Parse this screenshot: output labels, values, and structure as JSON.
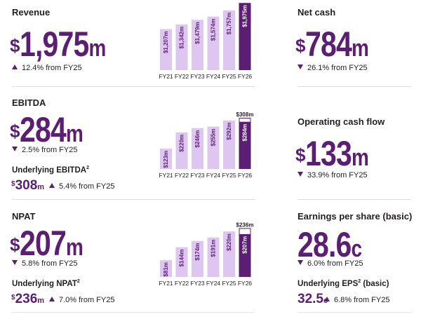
{
  "colors": {
    "accent": "#5c1e72",
    "light": "#ddc6f0",
    "text": "#231f20",
    "divider": "#e2e2e2"
  },
  "icons": {
    "up": "triangle-up-icon",
    "down": "triangle-down-icon"
  },
  "revenue": {
    "title": "Revenue",
    "currency": "$",
    "value": "1,975",
    "unit": "m",
    "change": "12.4% from FY25",
    "direction": "up"
  },
  "ebitda": {
    "title": "EBITDA",
    "currency": "$",
    "value": "284",
    "unit": "m",
    "change": "2.5% from FY25",
    "direction": "down",
    "underlying": {
      "title": "Underlying EBITDA",
      "sup": "2",
      "currency": "$",
      "value": "308",
      "unit": "m",
      "change": "5.4% from FY25",
      "direction": "up"
    }
  },
  "npat": {
    "title": "NPAT",
    "currency": "$",
    "value": "207",
    "unit": "m",
    "change": "5.8% from FY25",
    "direction": "down",
    "underlying": {
      "title": "Underlying NPAT",
      "sup": "2",
      "currency": "$",
      "value": "236",
      "unit": "m",
      "change": "7.0% from FY25",
      "direction": "up"
    }
  },
  "net_cash": {
    "title": "Net cash",
    "currency": "$",
    "value": "784",
    "unit": "m",
    "change": "26.1% from FY25",
    "direction": "down"
  },
  "ocf": {
    "title": "Operating cash flow",
    "currency": "$",
    "value": "133",
    "unit": "m",
    "change": "33.9% from FY25",
    "direction": "down"
  },
  "eps": {
    "title": "Earnings per share (basic)",
    "value": "28.6",
    "unit": "c",
    "change": "6.0% from FY25",
    "direction": "down",
    "underlying": {
      "title": "Underlying EPS",
      "sup": "2",
      "title_suffix": " (basic)",
      "value": "32.5",
      "unit": "c",
      "change": "6.8% from FY25",
      "direction": "up"
    }
  },
  "chart_data": [
    {
      "type": "bar",
      "categories": [
        "FY21",
        "FY22",
        "FY23",
        "FY24",
        "FY25",
        "FY26"
      ],
      "values": [
        1207,
        1342,
        1479,
        1574,
        1757,
        1975
      ],
      "labels": [
        "1,207",
        "1,342",
        "1,479",
        "1,574",
        "1,757",
        "1,975"
      ],
      "label_prefix": "$",
      "label_suffix": "m",
      "highlight_index": 5
    },
    {
      "type": "bar",
      "categories": [
        "FY21",
        "FY22",
        "FY23",
        "FY24",
        "FY25",
        "FY26"
      ],
      "values": [
        123,
        220,
        246,
        255,
        292,
        284
      ],
      "labels": [
        "123",
        "220",
        "246",
        "255",
        "292",
        "284"
      ],
      "label_prefix": "$",
      "label_suffix": "m",
      "highlight_index": 5,
      "underlying_value": 308,
      "underlying_label": "308"
    },
    {
      "type": "bar",
      "categories": [
        "FY21",
        "FY22",
        "FY23",
        "FY24",
        "FY25",
        "FY26"
      ],
      "values": [
        81,
        144,
        174,
        191,
        220,
        207
      ],
      "labels": [
        "81",
        "144",
        "174",
        "191",
        "220",
        "207"
      ],
      "label_prefix": "$",
      "label_suffix": "m",
      "highlight_index": 5,
      "underlying_value": 236,
      "underlying_label": "236"
    }
  ]
}
